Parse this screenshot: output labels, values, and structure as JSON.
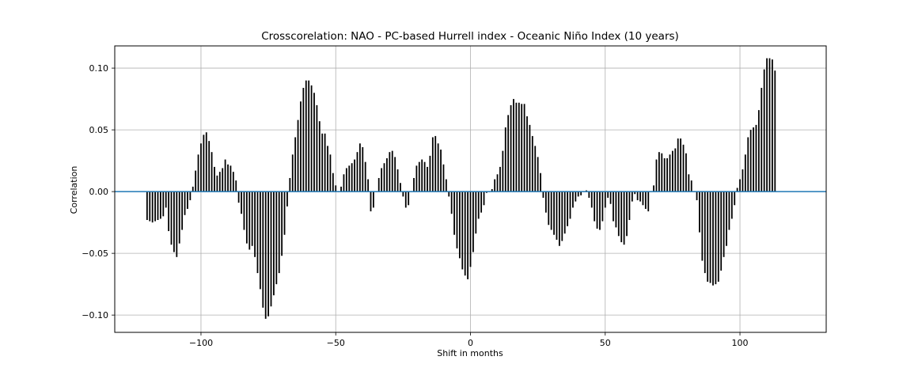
{
  "chart_data": {
    "type": "bar",
    "title": "Crosscorelation: NAO - PC-based Hurrell index - Oceanic Niño Index (10 years)",
    "xlabel": "Shift in months",
    "ylabel": "Correlation",
    "xlim": [
      -132,
      132
    ],
    "ylim": [
      -0.114,
      0.118
    ],
    "xticks": [
      -100,
      -50,
      0,
      50,
      100
    ],
    "xtick_labels": [
      "−100",
      "−50",
      "0",
      "50",
      "100"
    ],
    "yticks": [
      -0.1,
      -0.05,
      0.0,
      0.05,
      0.1
    ],
    "ytick_labels": [
      "−0.10",
      "−0.05",
      "0.00",
      "0.05",
      "0.10"
    ],
    "grid": true,
    "bar_color": "#000000",
    "zero_line_color": "#1f77b4",
    "x_start": -120,
    "x_step": 1,
    "values": [
      -0.023,
      -0.024,
      -0.025,
      -0.024,
      -0.023,
      -0.022,
      -0.02,
      -0.013,
      -0.032,
      -0.043,
      -0.049,
      -0.053,
      -0.042,
      -0.031,
      -0.019,
      -0.014,
      -0.007,
      0.004,
      0.017,
      0.03,
      0.039,
      0.046,
      0.048,
      0.041,
      0.032,
      0.02,
      0.013,
      0.016,
      0.019,
      0.026,
      0.022,
      0.021,
      0.016,
      0.009,
      -0.009,
      -0.018,
      -0.031,
      -0.042,
      -0.047,
      -0.044,
      -0.053,
      -0.066,
      -0.079,
      -0.094,
      -0.103,
      -0.101,
      -0.093,
      -0.084,
      -0.075,
      -0.066,
      -0.052,
      -0.035,
      -0.012,
      0.011,
      0.03,
      0.044,
      0.058,
      0.073,
      0.084,
      0.09,
      0.09,
      0.086,
      0.08,
      0.07,
      0.057,
      0.047,
      0.047,
      0.037,
      0.03,
      0.015,
      0.005,
      0.0,
      0.004,
      0.014,
      0.019,
      0.021,
      0.023,
      0.026,
      0.032,
      0.039,
      0.036,
      0.024,
      0.01,
      -0.016,
      -0.013,
      0.0,
      0.011,
      0.019,
      0.023,
      0.027,
      0.032,
      0.033,
      0.028,
      0.018,
      0.007,
      -0.004,
      -0.013,
      -0.011,
      0.0,
      0.011,
      0.021,
      0.024,
      0.026,
      0.024,
      0.02,
      0.029,
      0.044,
      0.045,
      0.039,
      0.034,
      0.022,
      0.01,
      -0.004,
      -0.018,
      -0.035,
      -0.046,
      -0.054,
      -0.063,
      -0.068,
      -0.071,
      -0.061,
      -0.049,
      -0.034,
      -0.022,
      -0.017,
      -0.011,
      -0.001,
      0.0,
      0.002,
      0.01,
      0.014,
      0.02,
      0.033,
      0.052,
      0.062,
      0.07,
      0.075,
      0.072,
      0.072,
      0.071,
      0.071,
      0.061,
      0.054,
      0.045,
      0.037,
      0.028,
      0.015,
      -0.005,
      -0.017,
      -0.027,
      -0.031,
      -0.035,
      -0.039,
      -0.044,
      -0.04,
      -0.034,
      -0.028,
      -0.022,
      -0.013,
      -0.008,
      -0.004,
      -0.003,
      0.0,
      0.001,
      -0.005,
      -0.013,
      -0.024,
      -0.03,
      -0.031,
      -0.024,
      -0.013,
      -0.005,
      -0.01,
      -0.024,
      -0.029,
      -0.036,
      -0.041,
      -0.043,
      -0.036,
      -0.023,
      -0.008,
      -0.002,
      -0.007,
      -0.008,
      -0.011,
      -0.014,
      -0.016,
      0.0,
      0.005,
      0.026,
      0.032,
      0.031,
      0.027,
      0.027,
      0.03,
      0.033,
      0.035,
      0.043,
      0.043,
      0.038,
      0.031,
      0.014,
      0.009,
      0.0,
      -0.007,
      -0.033,
      -0.056,
      -0.066,
      -0.073,
      -0.074,
      -0.076,
      -0.075,
      -0.073,
      -0.064,
      -0.053,
      -0.044,
      -0.031,
      -0.022,
      -0.011,
      0.003,
      0.01,
      0.018,
      0.03,
      0.044,
      0.05,
      0.052,
      0.054,
      0.066,
      0.084,
      0.099,
      0.108,
      0.108,
      0.107,
      0.098
    ]
  }
}
